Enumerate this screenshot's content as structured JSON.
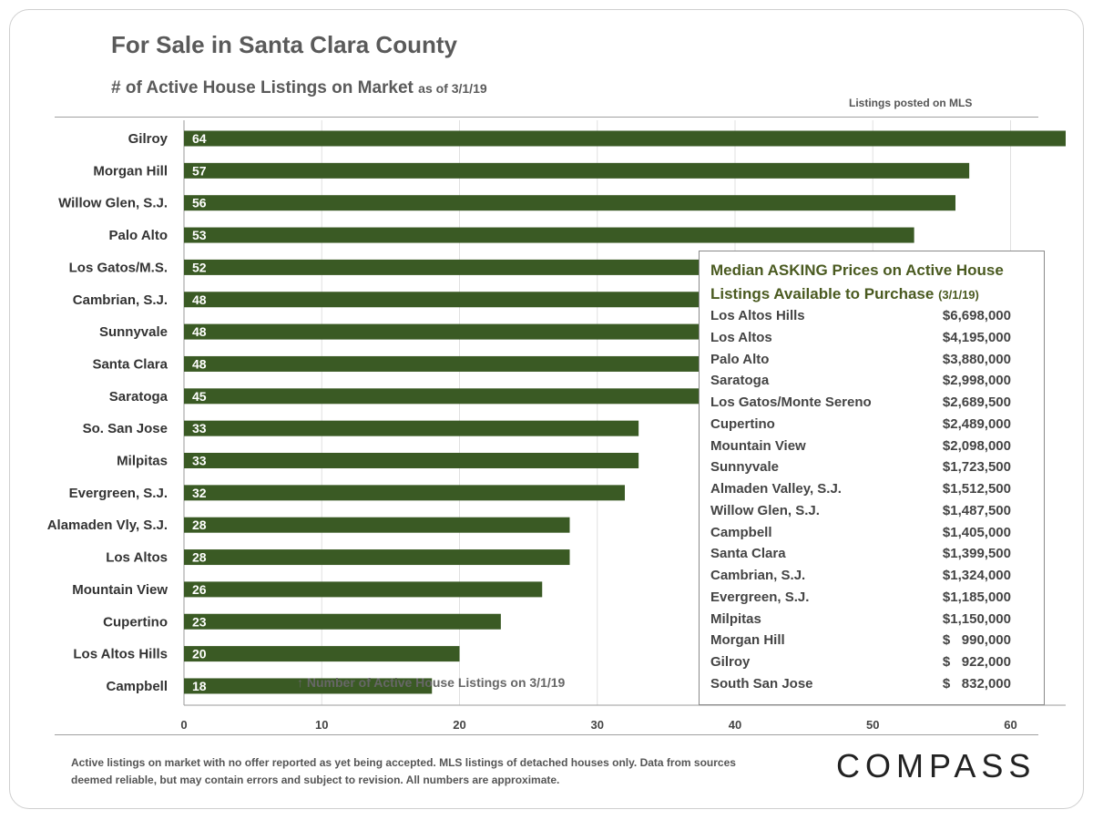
{
  "header": {
    "title": "For Sale in Santa Clara County",
    "subtitle": "# of Active House Listings on Market",
    "subtitle_asof": "as of 3/1/19",
    "source_note": "Listings posted on MLS"
  },
  "colors": {
    "bar": "#3a5a24",
    "bar_label": "#ffffff",
    "grid": "#e0e0e0",
    "text": "#333333",
    "legend_heading": "#4a5a20"
  },
  "chart_data": {
    "type": "bar",
    "orientation": "horizontal",
    "categories": [
      "Gilroy",
      "Morgan Hill",
      "Willow Glen, S.J.",
      "Palo Alto",
      "Los Gatos/M.S.",
      "Cambrian, S.J.",
      "Sunnyvale",
      "Santa Clara",
      "Saratoga",
      "So. San Jose",
      "Milpitas",
      "Evergreen, S.J.",
      "Alamaden Vly, S.J.",
      "Los Altos",
      "Mountain View",
      "Cupertino",
      "Los Altos Hills",
      "Campbell"
    ],
    "values": [
      64,
      57,
      56,
      53,
      52,
      48,
      48,
      48,
      45,
      33,
      33,
      32,
      28,
      28,
      26,
      23,
      20,
      18
    ],
    "xlim": [
      0,
      64
    ],
    "xticks": [
      0,
      10,
      20,
      30,
      40,
      50,
      60
    ],
    "grid": true,
    "annotation": "Number of Active House Listings on 3/1/19"
  },
  "price_box": {
    "heading_line1": "Median ASKING Prices on Active House",
    "heading_line2": "Listings Available to Purchase",
    "heading_asof": "(3/1/19)",
    "rows": [
      {
        "name": "Los Altos Hills",
        "price": "$6,698,000"
      },
      {
        "name": "Los Altos",
        "price": "$4,195,000"
      },
      {
        "name": "Palo Alto",
        "price": "$3,880,000"
      },
      {
        "name": "Saratoga",
        "price": "$2,998,000"
      },
      {
        "name": "Los Gatos/Monte Sereno",
        "price": "$2,689,500"
      },
      {
        "name": "Cupertino",
        "price": "$2,489,000"
      },
      {
        "name": "Mountain View",
        "price": "$2,098,000"
      },
      {
        "name": "Sunnyvale",
        "price": "$1,723,500"
      },
      {
        "name": "Almaden Valley, S.J.",
        "price": "$1,512,500"
      },
      {
        "name": "Willow Glen, S.J.",
        "price": "$1,487,500"
      },
      {
        "name": "Campbell",
        "price": "$1,405,000"
      },
      {
        "name": "Santa Clara",
        "price": "$1,399,500"
      },
      {
        "name": "Cambrian, S.J.",
        "price": "$1,324,000"
      },
      {
        "name": "Evergreen, S.J.",
        "price": "$1,185,000"
      },
      {
        "name": "Milpitas",
        "price": "$1,150,000"
      },
      {
        "name": "Morgan Hill",
        "price": "$   990,000"
      },
      {
        "name": "Gilroy",
        "price": "$   922,000"
      },
      {
        "name": "South San Jose",
        "price": "$   832,000"
      }
    ]
  },
  "footnote": "Active listings on market with no offer reported as yet being accepted. MLS listings of detached houses only. Data from sources deemed reliable, but may contain errors and subject to revision. All numbers are approximate.",
  "logo": "COMPASS"
}
